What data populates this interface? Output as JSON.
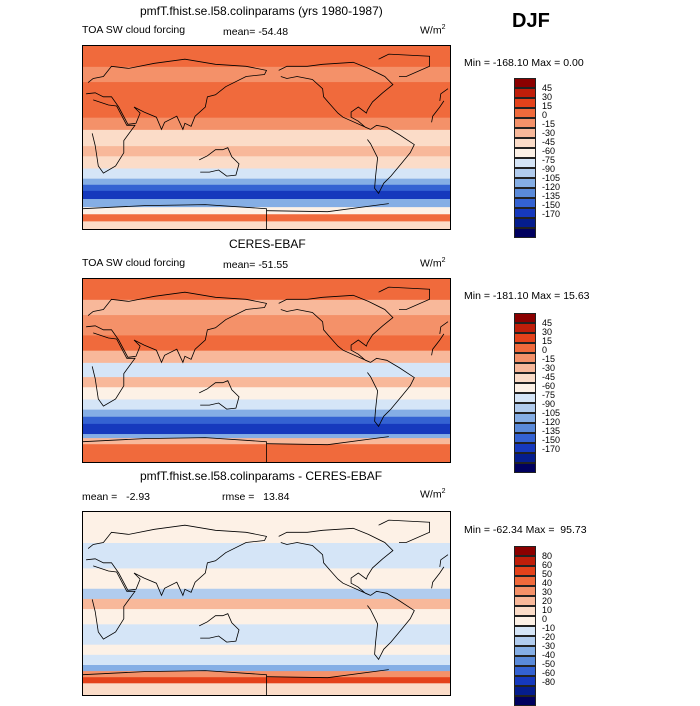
{
  "season": "DJF",
  "chart_data": [
    {
      "type": "heatmap",
      "title": "pmfT.fhist.se.l58.colinparams (yrs 1980-1987)",
      "variable": "TOA SW cloud forcing",
      "mean_label": "mean= -54.48",
      "units_label": "W/m",
      "units_sup": "2",
      "range_label": "Min = -168.10 Max =    0.00",
      "min": -168.1,
      "max": 0.0,
      "mean": -54.48,
      "levels": [
        "45",
        "30",
        "15",
        "0",
        "-15",
        "-30",
        "-45",
        "-60",
        "-75",
        "-90",
        "-105",
        "-120",
        "-135",
        "-150",
        "-170"
      ],
      "colors": [
        "#8b0000",
        "#bf1e0a",
        "#e4421b",
        "#f06a3c",
        "#f49169",
        "#f8b89a",
        "#fbdcc8",
        "#fdf1e6",
        "#d5e5f7",
        "#b1ccee",
        "#85aee5",
        "#5a8ad9",
        "#3462d2",
        "#1639bd",
        "#051d8d",
        "#00005e"
      ],
      "bands": [
        [
          -90,
          -82,
          "#fbdcc8"
        ],
        [
          -82,
          -75,
          "#f06a3c"
        ],
        [
          -75,
          -68,
          "#fdf1e6"
        ],
        [
          -68,
          -60,
          "#85aee5"
        ],
        [
          -60,
          -52,
          "#1639bd"
        ],
        [
          -52,
          -46,
          "#3462d2"
        ],
        [
          -46,
          -40,
          "#85aee5"
        ],
        [
          -40,
          -30,
          "#d5e5f7"
        ],
        [
          -30,
          -18,
          "#fbdcc8"
        ],
        [
          -18,
          -8,
          "#f8b89a"
        ],
        [
          -8,
          8,
          "#fbdcc8"
        ],
        [
          8,
          20,
          "#f49169"
        ],
        [
          20,
          35,
          "#f06a3c"
        ],
        [
          35,
          55,
          "#f06a3c"
        ],
        [
          55,
          70,
          "#f49169"
        ],
        [
          70,
          90,
          "#f06a3c"
        ]
      ]
    },
    {
      "type": "heatmap",
      "title": "CERES-EBAF",
      "variable": "TOA SW cloud forcing",
      "mean_label": "mean= -51.55",
      "units_label": "W/m",
      "units_sup": "2",
      "range_label": "Min = -181.10 Max =   15.63",
      "min": -181.1,
      "max": 15.63,
      "mean": -51.55,
      "levels": [
        "45",
        "30",
        "15",
        "0",
        "-15",
        "-30",
        "-45",
        "-60",
        "-75",
        "-90",
        "-105",
        "-120",
        "-135",
        "-150",
        "-170"
      ],
      "colors": [
        "#8b0000",
        "#bf1e0a",
        "#e4421b",
        "#f06a3c",
        "#f49169",
        "#f8b89a",
        "#fbdcc8",
        "#fdf1e6",
        "#d5e5f7",
        "#b1ccee",
        "#85aee5",
        "#5a8ad9",
        "#3462d2",
        "#1639bd",
        "#051d8d",
        "#00005e"
      ],
      "bands": [
        [
          -90,
          -72,
          "#f06a3c"
        ],
        [
          -72,
          -66,
          "#f8b89a"
        ],
        [
          -66,
          -62,
          "#85aee5"
        ],
        [
          -62,
          -52,
          "#1639bd"
        ],
        [
          -52,
          -45,
          "#3462d2"
        ],
        [
          -45,
          -38,
          "#85aee5"
        ],
        [
          -38,
          -28,
          "#d5e5f7"
        ],
        [
          -28,
          -16,
          "#fdf1e6"
        ],
        [
          -16,
          -6,
          "#f8b89a"
        ],
        [
          -6,
          8,
          "#d5e5f7"
        ],
        [
          8,
          20,
          "#f8b89a"
        ],
        [
          20,
          35,
          "#f06a3c"
        ],
        [
          35,
          55,
          "#f49169"
        ],
        [
          55,
          70,
          "#f8b89a"
        ],
        [
          70,
          90,
          "#f06a3c"
        ]
      ]
    },
    {
      "type": "heatmap",
      "title": "pmfT.fhist.se.l58.colinparams - CERES-EBAF",
      "mean_label": "mean =   -2.93",
      "rmse_label": "rmse =   13.84",
      "units_label": "W/m",
      "units_sup": "2",
      "range_label": "Min = -62.34 Max =  95.73",
      "min": -62.34,
      "max": 95.73,
      "mean": -2.93,
      "rmse": 13.84,
      "levels": [
        "80",
        "60",
        "50",
        "40",
        "30",
        "20",
        "10",
        "0",
        "-10",
        "-20",
        "-30",
        "-40",
        "-50",
        "-60",
        "-80"
      ],
      "colors": [
        "#8b0000",
        "#bf1e0a",
        "#e4421b",
        "#f06a3c",
        "#f49169",
        "#f8b89a",
        "#fbdcc8",
        "#fdf1e6",
        "#d5e5f7",
        "#b1ccee",
        "#85aee5",
        "#5a8ad9",
        "#3462d2",
        "#1639bd",
        "#051d8d",
        "#00005e"
      ],
      "bands": [
        [
          -90,
          -78,
          "#fbdcc8"
        ],
        [
          -78,
          -72,
          "#e4421b"
        ],
        [
          -72,
          -66,
          "#f49169"
        ],
        [
          -66,
          -60,
          "#85aee5"
        ],
        [
          -60,
          -50,
          "#d5e5f7"
        ],
        [
          -50,
          -40,
          "#fdf1e6"
        ],
        [
          -40,
          -20,
          "#d5e5f7"
        ],
        [
          -20,
          -5,
          "#fdf1e6"
        ],
        [
          -5,
          5,
          "#f8b89a"
        ],
        [
          5,
          15,
          "#b1ccee"
        ],
        [
          15,
          35,
          "#fdf1e6"
        ],
        [
          35,
          60,
          "#d5e5f7"
        ],
        [
          60,
          90,
          "#fdf1e6"
        ]
      ]
    }
  ]
}
